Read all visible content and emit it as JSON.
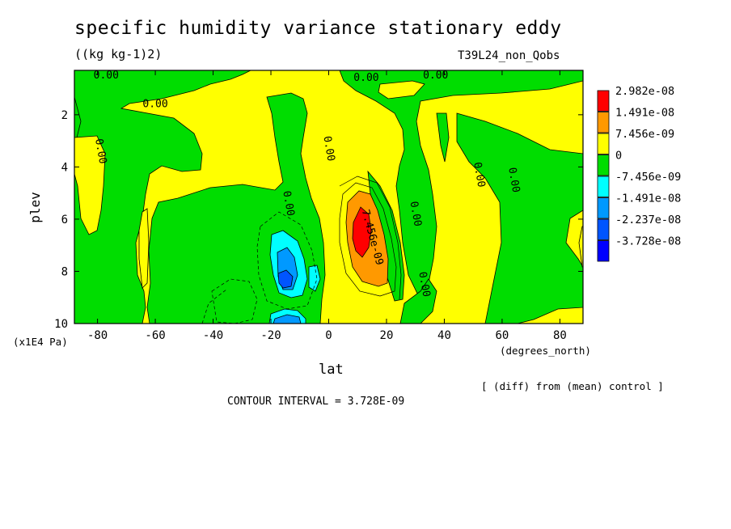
{
  "title": "specific humidity variance stationary eddy",
  "units": "((kg kg-1)2)",
  "run_id": "T39L24_non_Qobs",
  "diff_note": "[ (diff) from (mean) control ]",
  "contour_interval": "CONTOUR INTERVAL = 3.728E-09",
  "chart_data": {
    "type": "heatmap",
    "subtype": "filled-contour",
    "title": "specific humidity variance stationary eddy",
    "units": "((kg kg-1)2)",
    "xlabel": "lat",
    "ylabel": "plev",
    "x_units": "(degrees_north)",
    "y_units": "(x1E4 Pa)",
    "xlim": [
      -88,
      88
    ],
    "ylim": [
      10,
      0.3
    ],
    "x_ticks": [
      -80,
      -60,
      -40,
      -20,
      0,
      20,
      40,
      60,
      80
    ],
    "y_ticks": [
      2,
      4,
      6,
      8,
      10
    ],
    "contour_labels": [
      {
        "text": "0.00",
        "lat": -77,
        "plev": 0.5
      },
      {
        "text": "0.00",
        "lat": 13,
        "plev": 0.6
      },
      {
        "text": "0.00",
        "lat": 37,
        "plev": 0.5
      },
      {
        "text": "0.00",
        "lat": -60,
        "plev": 1.6
      },
      {
        "text": "0.00",
        "lat": -79,
        "plev": 3.4
      },
      {
        "text": "0.00",
        "lat": 0,
        "plev": 3.3
      },
      {
        "text": "0.00",
        "lat": -14,
        "plev": 5.4
      },
      {
        "text": "0.00",
        "lat": 52,
        "plev": 4.3
      },
      {
        "text": "0.00",
        "lat": 64,
        "plev": 4.5
      },
      {
        "text": "0.00",
        "lat": 30,
        "plev": 5.8
      },
      {
        "text": "0.00",
        "lat": 33,
        "plev": 8.5
      },
      {
        "text": "7.456e-09",
        "lat": 15,
        "plev": 6.7
      }
    ],
    "colorbar": {
      "levels": [
        "2.982e-08",
        "1.491e-08",
        "7.456e-09",
        "0",
        "-7.456e-09",
        "-1.491e-08",
        "-2.237e-08",
        "-3.728e-08"
      ],
      "colors": [
        "#ff0000",
        "#ff9900",
        "#ffff00",
        "#00dd00",
        "#00ffff",
        "#0099ff",
        "#0055ff",
        "#0000ff"
      ]
    },
    "features": [
      {
        "sign": "positive",
        "max_level": "2.982e-08",
        "lat_range": [
          5,
          20
        ],
        "plev_range": [
          4.6,
          10
        ]
      },
      {
        "sign": "negative",
        "min_level": "-3.728e-08",
        "lat_range": [
          -25,
          -5
        ],
        "plev_range": [
          5.5,
          10
        ]
      }
    ]
  }
}
